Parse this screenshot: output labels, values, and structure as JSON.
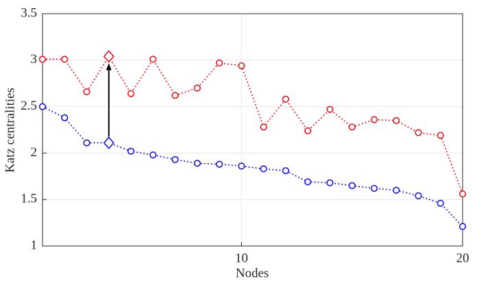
{
  "chart_data": {
    "type": "line",
    "xlabel": "Nodes",
    "ylabel": "Katz centralities",
    "x": [
      1,
      2,
      3,
      4,
      5,
      6,
      7,
      8,
      9,
      10,
      11,
      12,
      13,
      14,
      15,
      16,
      17,
      18,
      19,
      20
    ],
    "series": [
      {
        "color": "#e8151b",
        "marker": "circle",
        "values": [
          3.01,
          3.01,
          2.66,
          3.04,
          2.64,
          3.01,
          2.62,
          2.7,
          2.97,
          2.94,
          2.28,
          2.58,
          2.24,
          2.47,
          2.28,
          2.36,
          2.35,
          2.22,
          2.19,
          1.56
        ]
      },
      {
        "color": "#1414e0",
        "marker": "circle",
        "values": [
          2.5,
          2.38,
          2.11,
          2.11,
          2.02,
          1.98,
          1.93,
          1.89,
          1.88,
          1.86,
          1.83,
          1.81,
          1.69,
          1.68,
          1.65,
          1.62,
          1.6,
          1.54,
          1.46,
          1.21
        ]
      }
    ],
    "highlight": {
      "index": 3,
      "marker": "diamond",
      "arrow": true
    },
    "xlim": [
      1,
      20
    ],
    "xticks": [
      10,
      20
    ],
    "ylim": [
      1,
      3.5
    ],
    "yticks": [
      1,
      1.5,
      2,
      2.5,
      3,
      3.5
    ],
    "grid": true
  }
}
